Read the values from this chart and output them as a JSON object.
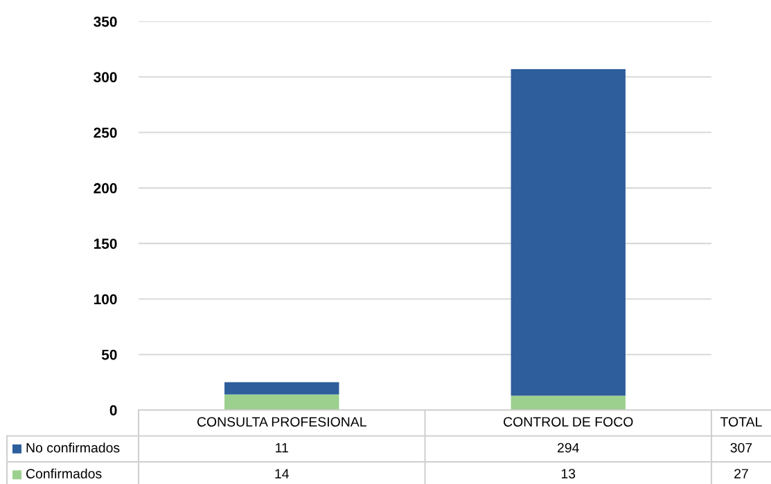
{
  "chart_data": {
    "type": "bar",
    "stacked": true,
    "categories": [
      "CONSULTA PROFESIONAL",
      "CONTROL DE FOCO",
      "TOTAL"
    ],
    "series": [
      {
        "name": "Confirmados",
        "color": "#9cd08f",
        "values": [
          14,
          13,
          null
        ],
        "value_labels": [
          "14",
          "13",
          "27"
        ]
      },
      {
        "name": "No confirmados",
        "color": "#2e5e9c",
        "values": [
          11,
          294,
          null
        ],
        "value_labels": [
          "11",
          "294",
          "307"
        ]
      }
    ],
    "ylim": [
      0,
      350
    ],
    "yticks": [
      0,
      50,
      100,
      150,
      200,
      250,
      300,
      350
    ],
    "grid": "y",
    "legend": "bottom left"
  }
}
